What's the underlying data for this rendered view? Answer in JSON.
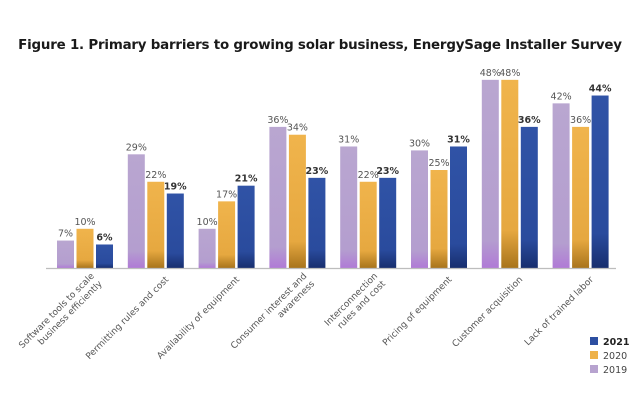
{
  "chart_data": {
    "type": "bar",
    "title": "Figure 1. Primary barriers to growing solar business, EnergySage Installer Survey",
    "xlabel": "",
    "ylabel": "",
    "ylim": [
      0,
      48
    ],
    "grid": false,
    "legend_position": "bottom-right",
    "categories": [
      [
        "Software tools to scale",
        "business efficiently"
      ],
      [
        "Permitting rules and cost"
      ],
      [
        "Availability of equipment"
      ],
      [
        "Consumer interest and",
        "awareness"
      ],
      [
        "Interconnection",
        "rules and cost"
      ],
      [
        "Pricing of equipment"
      ],
      [
        "Customer acquisition"
      ],
      [
        "Lack of trained labor"
      ]
    ],
    "series": [
      {
        "name": "2019",
        "color": "#b7a3cf",
        "values": [
          7,
          29,
          10,
          36,
          31,
          30,
          48,
          42
        ],
        "labels": [
          "7%",
          "29%",
          "10%",
          "36%",
          "31%",
          "30%",
          "48%",
          "42%"
        ]
      },
      {
        "name": "2020",
        "color": "#eeb24a",
        "values": [
          10,
          22,
          17,
          34,
          22,
          25,
          48,
          36
        ],
        "labels": [
          "10%",
          "22%",
          "17%",
          "34%",
          "22%",
          "25%",
          "48%",
          "36%"
        ]
      },
      {
        "name": "2021",
        "color": "#2d4fa1",
        "values": [
          6,
          19,
          21,
          23,
          23,
          31,
          36,
          44
        ],
        "labels": [
          "6%",
          "19%",
          "21%",
          "23%",
          "23%",
          "31%",
          "36%",
          "44%"
        ]
      }
    ],
    "legend": [
      "2021",
      "2020",
      "2019"
    ]
  }
}
